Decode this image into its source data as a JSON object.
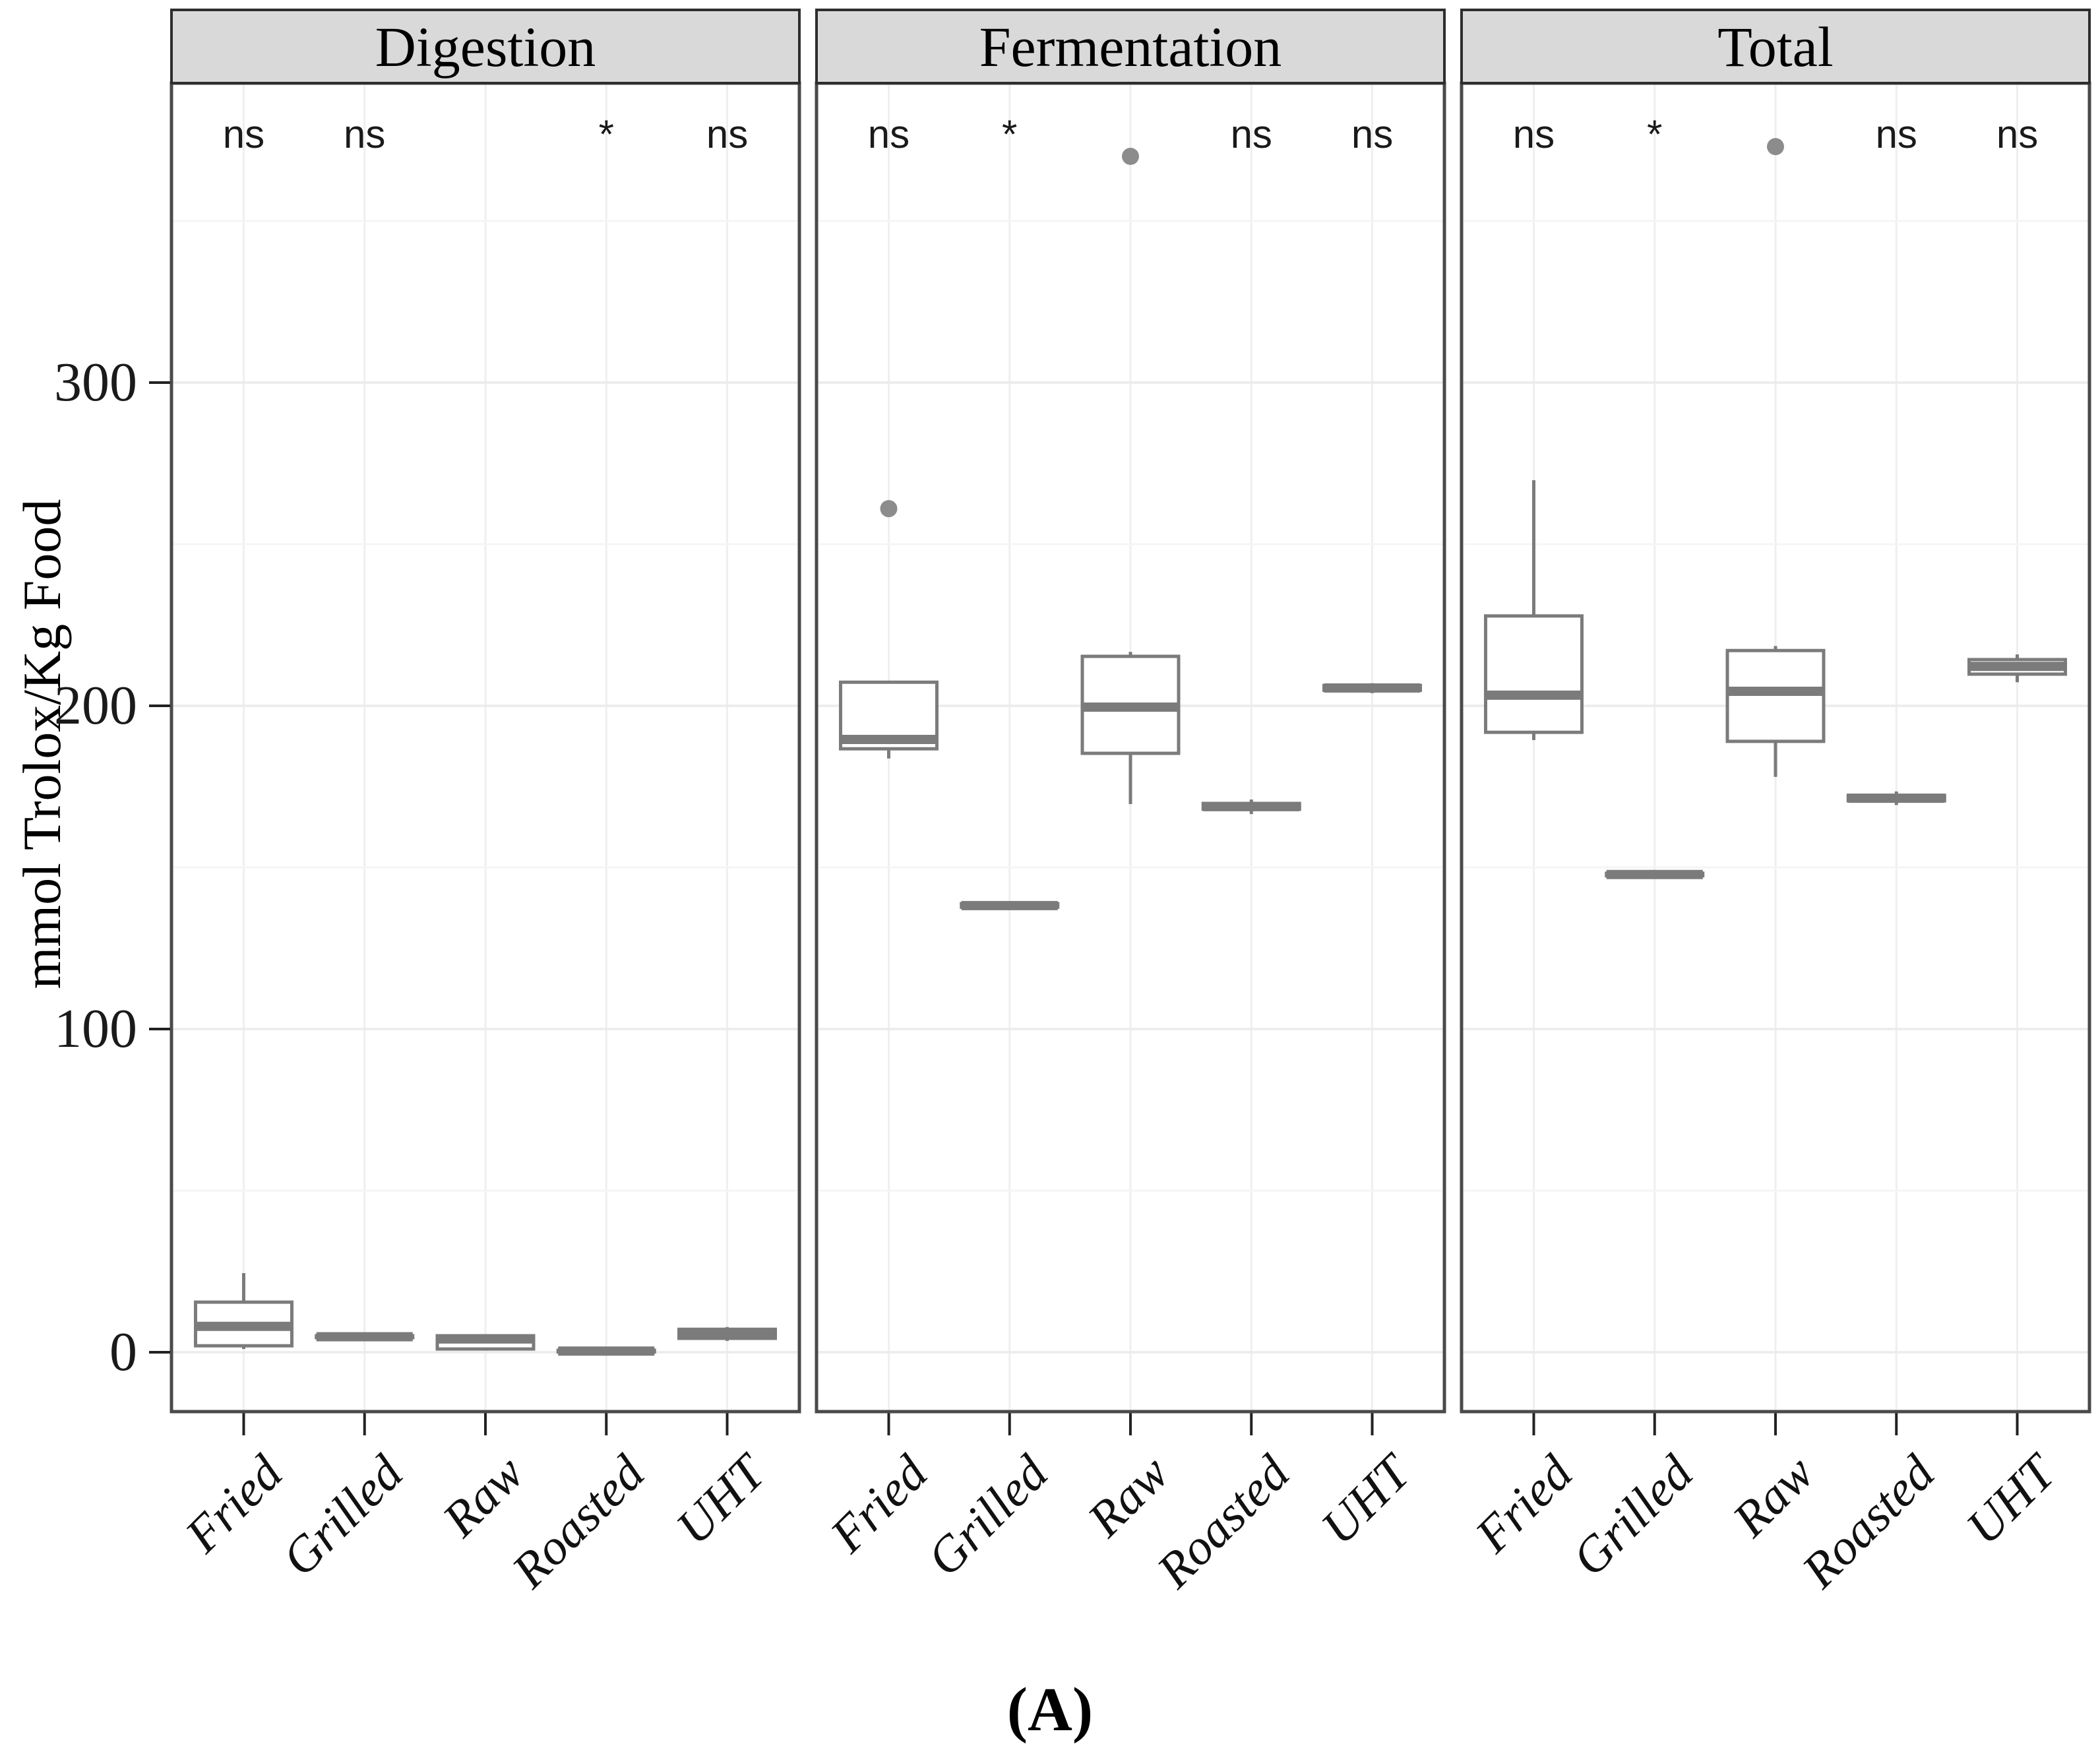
{
  "figure": {
    "caption": "(A)"
  },
  "chart_data": {
    "type": "boxplot",
    "faceted": true,
    "title": "",
    "ylabel": "mmol Trolox/Kg Food",
    "xlabel": "",
    "yticks": [
      0,
      100,
      200,
      300
    ],
    "ydomain": [
      -18,
      393
    ],
    "grid": "major and minor horizontal, vertical at categories",
    "annotation_row_value": 377,
    "categories": [
      "Fried",
      "Grilled",
      "Raw",
      "Roasted",
      "UHT"
    ],
    "colors": {
      "box_stroke": "#7b7b7b",
      "box_fill": "#ffffff",
      "median": "#7b7b7b",
      "outlier": "#8c8c8c",
      "strip_bg": "#d9d9d9",
      "strip_border": "#2e2e2e",
      "panel_border": "#4a4a4a",
      "grid_major": "#ebebeb",
      "grid_minor": "#f5f5f5",
      "grid_vertical": "#efefef",
      "tick": "#222222",
      "text": "#000000"
    },
    "panels": [
      {
        "title": "Digestion",
        "boxes": [
          {
            "category": "Fried",
            "low": 1.0,
            "q1": 2.0,
            "median": 8.0,
            "q3": 15.5,
            "high": 24.5,
            "outliers": [],
            "sig": "ns"
          },
          {
            "category": "Grilled",
            "low": 4.2,
            "q1": 4.5,
            "median": 4.8,
            "q3": 5.1,
            "high": 5.4,
            "outliers": [],
            "sig": "ns"
          },
          {
            "category": "Raw",
            "low": 0.5,
            "q1": 1.0,
            "median": 4.1,
            "q3": 5.1,
            "high": 5.6,
            "outliers": [],
            "sig": ""
          },
          {
            "category": "Roasted",
            "low": -0.1,
            "q1": 0.1,
            "median": 0.35,
            "q3": 0.6,
            "high": 0.8,
            "outliers": [],
            "sig": "*"
          },
          {
            "category": "UHT",
            "low": 3.5,
            "q1": 4.3,
            "median": 5.7,
            "q3": 7.1,
            "high": 7.8,
            "outliers": [],
            "sig": "ns"
          }
        ]
      },
      {
        "title": "Fermentation",
        "boxes": [
          {
            "category": "Fried",
            "low": 183.7,
            "q1": 186.7,
            "median": 189.6,
            "q3": 207.3,
            "high": 207.3,
            "outliers": [
              261
            ],
            "sig": "ns"
          },
          {
            "category": "Grilled",
            "low": 137.0,
            "q1": 137.7,
            "median": 138.2,
            "q3": 138.8,
            "high": 139.4,
            "outliers": [],
            "sig": "*"
          },
          {
            "category": "Raw",
            "low": 169.6,
            "q1": 185.3,
            "median": 199.6,
            "q3": 215.3,
            "high": 216.7,
            "outliers": [
              370
            ],
            "sig": ""
          },
          {
            "category": "Roasted",
            "low": 166.5,
            "q1": 168.0,
            "median": 168.8,
            "q3": 169.8,
            "high": 171.0,
            "outliers": [],
            "sig": "ns"
          },
          {
            "category": "UHT",
            "low": 203.9,
            "q1": 204.8,
            "median": 205.5,
            "q3": 206.3,
            "high": 207.0,
            "outliers": [],
            "sig": "ns"
          }
        ]
      },
      {
        "title": "Total",
        "boxes": [
          {
            "category": "Fried",
            "low": 189.4,
            "q1": 191.8,
            "median": 203.3,
            "q3": 227.8,
            "high": 269.8,
            "outliers": [],
            "sig": "ns"
          },
          {
            "category": "Grilled",
            "low": 147.0,
            "q1": 147.4,
            "median": 147.8,
            "q3": 148.2,
            "high": 148.6,
            "outliers": [],
            "sig": "*"
          },
          {
            "category": "Raw",
            "low": 178.0,
            "q1": 189.0,
            "median": 204.5,
            "q3": 217.1,
            "high": 218.5,
            "outliers": [
              373
            ],
            "sig": ""
          },
          {
            "category": "Roasted",
            "low": 169.3,
            "q1": 170.6,
            "median": 171.4,
            "q3": 172.3,
            "high": 173.5,
            "outliers": [],
            "sig": "ns"
          },
          {
            "category": "UHT",
            "low": 207.3,
            "q1": 209.8,
            "median": 212.2,
            "q3": 214.3,
            "high": 215.9,
            "outliers": [],
            "sig": "ns"
          }
        ]
      }
    ]
  }
}
